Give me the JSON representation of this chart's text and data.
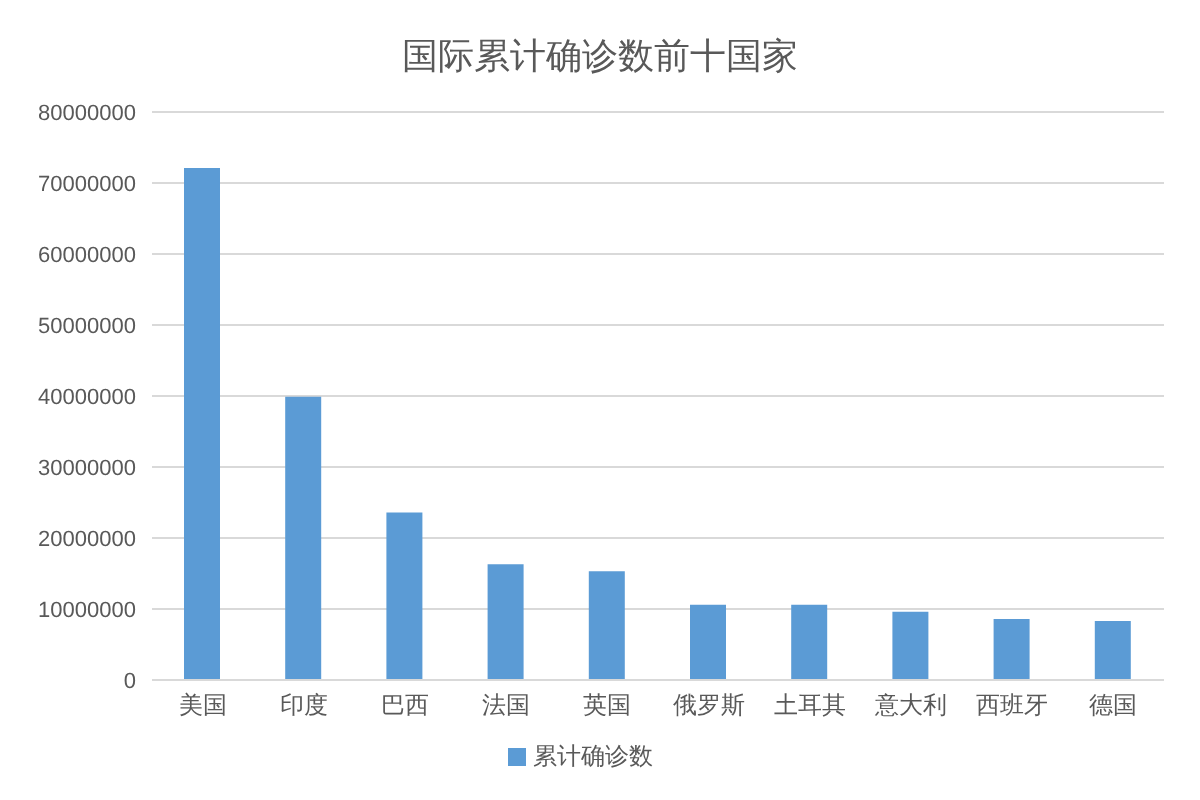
{
  "chart_data": {
    "type": "bar",
    "title": "国际累计确诊数前十国家",
    "categories": [
      "美国",
      "印度",
      "巴西",
      "法国",
      "英国",
      "俄罗斯",
      "土耳其",
      "意大利",
      "西班牙",
      "德国"
    ],
    "series": [
      {
        "name": "累计确诊数",
        "color": "#5b9bd5",
        "values": [
          72100000,
          39900000,
          23600000,
          16300000,
          15300000,
          10600000,
          10600000,
          9600000,
          8600000,
          8300000
        ]
      }
    ],
    "ylim": [
      0,
      80000000
    ],
    "yticks": [
      0,
      10000000,
      20000000,
      30000000,
      40000000,
      50000000,
      60000000,
      70000000,
      80000000
    ],
    "grid": "y",
    "legend": "bottom"
  }
}
